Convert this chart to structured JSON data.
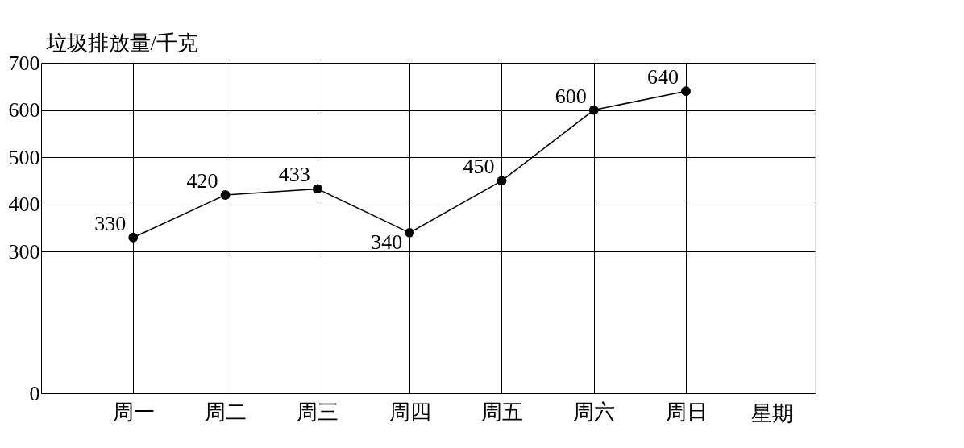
{
  "chart_data": {
    "type": "line",
    "xlabel": "星期",
    "ylabel": "垃圾排放量/千克",
    "categories": [
      "周一",
      "周二",
      "周三",
      "周四",
      "周五",
      "周六",
      "周日"
    ],
    "series": [
      {
        "color": "#000000",
        "values": [
          330,
          420,
          433,
          340,
          450,
          600,
          640
        ]
      }
    ],
    "ylim": [
      0,
      700
    ],
    "yticks": [
      0,
      300,
      400,
      500,
      600,
      700
    ],
    "grid": true,
    "data_labels": true,
    "marker": "circle",
    "line_style": "solid"
  }
}
